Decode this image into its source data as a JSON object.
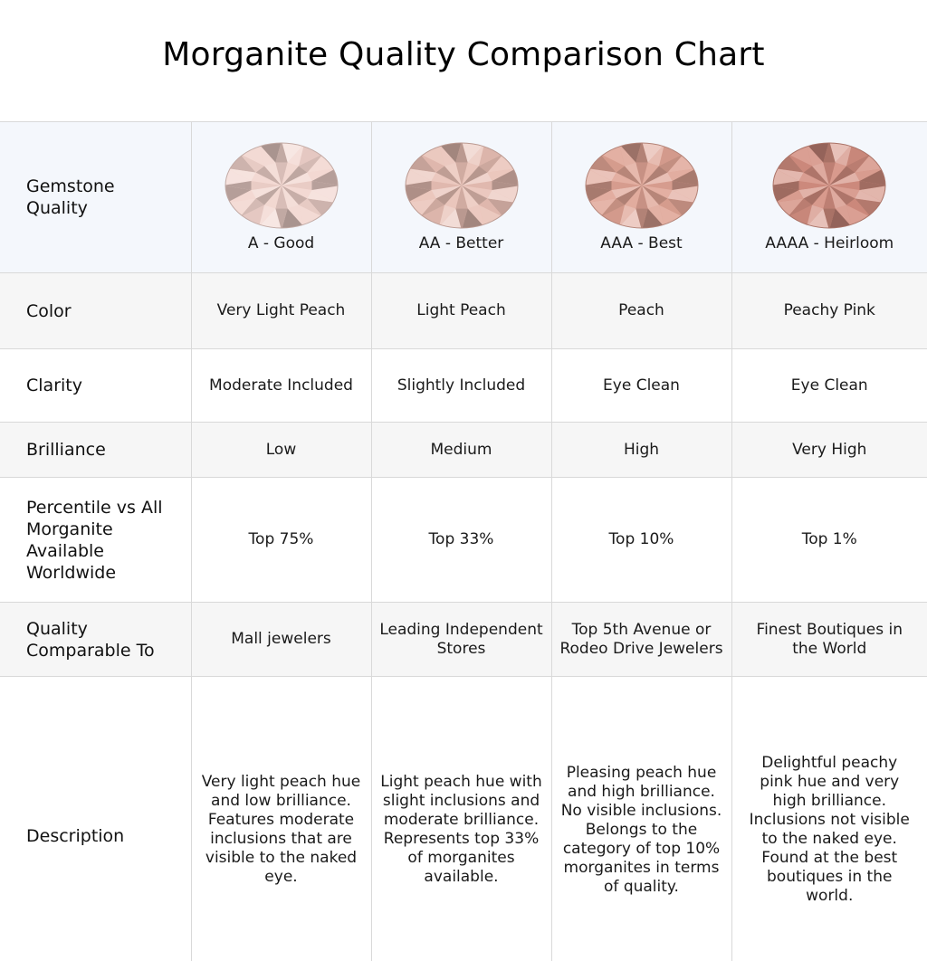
{
  "title": "Morganite Quality Comparison Chart",
  "rows": {
    "gemstone_quality": "Gemstone Quality",
    "color": "Color",
    "clarity": "Clarity",
    "brilliance": "Brilliance",
    "percentile": "Percentile vs All Morganite Available Worldwide",
    "comparable": "Quality Comparable To",
    "description": "Description"
  },
  "grades": [
    {
      "name": "A - Good",
      "gem_color": "#f1d3cc",
      "color": "Very Light Peach",
      "clarity": "Moderate Included",
      "brilliance": "Low",
      "percentile": "Top 75%",
      "comparable": "Mall jewelers",
      "description": "Very light peach hue and low brilliance. Features moderate inclusions that are visible to the naked eye."
    },
    {
      "name": "AA - Better",
      "gem_color": "#e8bfb4",
      "color": "Light Peach",
      "clarity": "Slightly Included",
      "brilliance": "Medium",
      "percentile": "Top 33%",
      "comparable": "Leading Independent Stores",
      "description": "Light peach hue with slight inclusions and moderate brilliance. Represents top 33% of morganites available."
    },
    {
      "name": "AAA - Best",
      "gem_color": "#dea293",
      "color": "Peach",
      "clarity": "Eye Clean",
      "brilliance": "High",
      "percentile": "Top 10%",
      "comparable": "Top 5th Avenue or Rodeo Drive Jewelers",
      "description": "Pleasing peach hue and high brilliance. No visible inclusions. Belongs to the category of top 10% morganites in terms of quality."
    },
    {
      "name": "AAAA - Heirloom",
      "gem_color": "#d38e80",
      "color": "Peachy Pink",
      "clarity": "Eye Clean",
      "brilliance": "Very High",
      "percentile": "Top 1%",
      "comparable": "Finest Boutiques in the World",
      "description": "Delightful peachy pink hue and very high brilliance. Inclusions not visible to the naked eye. Found at the best boutiques in the world."
    }
  ]
}
